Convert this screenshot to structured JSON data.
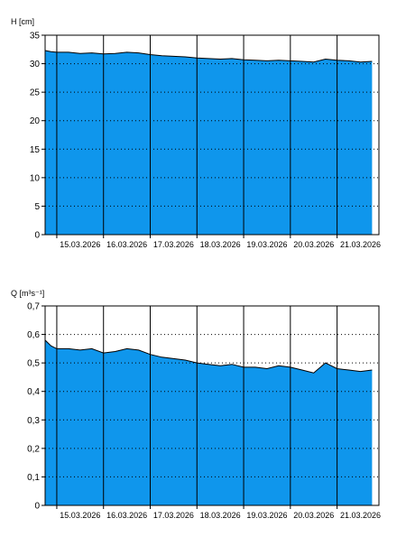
{
  "colors": {
    "area_fill": "#0f96ec",
    "line": "#000000",
    "background": "#ffffff",
    "grid": "#000000"
  },
  "chart_data": [
    {
      "type": "area",
      "ylabel": "H [cm]",
      "xlabel": "",
      "ylim": [
        0,
        35
      ],
      "yticks": [
        "0",
        "5",
        "10",
        "15",
        "20",
        "25",
        "30",
        "35"
      ],
      "ytick_values": [
        0,
        5,
        10,
        15,
        20,
        25,
        30,
        35
      ],
      "xlim": [
        "2026-03-14 18:00",
        "2026-03-21 21:30"
      ],
      "xtick_labels": [
        "15.03.2026",
        "16.03.2026",
        "17.03.2026",
        "18.03.2026",
        "19.03.2026",
        "20.03.2026",
        "21.03.2026"
      ],
      "xtick_values": [
        "2026-03-15 00:00",
        "2026-03-16 00:00",
        "2026-03-17 00:00",
        "2026-03-18 00:00",
        "2026-03-19 00:00",
        "2026-03-20 00:00",
        "2026-03-21 00:00"
      ],
      "grid": "vertical solid at day boundaries, horizontal dotted at y ticks",
      "series": [
        {
          "x": [
            "2026-03-14 18:00",
            "2026-03-14 21:00",
            "2026-03-15 00:00",
            "2026-03-15 06:00",
            "2026-03-15 12:00",
            "2026-03-15 18:00",
            "2026-03-16 00:00",
            "2026-03-16 06:00",
            "2026-03-16 12:00",
            "2026-03-16 18:00",
            "2026-03-17 00:00",
            "2026-03-17 06:00",
            "2026-03-17 12:00",
            "2026-03-17 18:00",
            "2026-03-18 00:00",
            "2026-03-18 06:00",
            "2026-03-18 12:00",
            "2026-03-18 18:00",
            "2026-03-19 00:00",
            "2026-03-19 06:00",
            "2026-03-19 12:00",
            "2026-03-19 18:00",
            "2026-03-20 00:00",
            "2026-03-20 06:00",
            "2026-03-20 12:00",
            "2026-03-20 18:00",
            "2026-03-21 00:00",
            "2026-03-21 06:00",
            "2026-03-21 12:00",
            "2026-03-21 18:00"
          ],
          "y": [
            32.3,
            32.1,
            32.0,
            32.0,
            31.8,
            31.9,
            31.7,
            31.8,
            32.0,
            31.9,
            31.6,
            31.4,
            31.3,
            31.2,
            31.0,
            30.9,
            30.8,
            30.9,
            30.7,
            30.6,
            30.5,
            30.6,
            30.5,
            30.4,
            30.3,
            30.8,
            30.6,
            30.5,
            30.3,
            30.4
          ]
        }
      ]
    },
    {
      "type": "area",
      "ylabel": "Q [m³s⁻¹]",
      "xlabel": "",
      "ylim": [
        0,
        0.7
      ],
      "yticks": [
        "0",
        "0,1",
        "0,2",
        "0,3",
        "0,4",
        "0,5",
        "0,6",
        "0,7"
      ],
      "ytick_values": [
        0,
        0.1,
        0.2,
        0.3,
        0.4,
        0.5,
        0.6,
        0.7
      ],
      "xlim": [
        "2026-03-14 18:00",
        "2026-03-21 21:30"
      ],
      "xtick_labels": [
        "15.03.2026",
        "16.03.2026",
        "17.03.2026",
        "18.03.2026",
        "19.03.2026",
        "20.03.2026",
        "21.03.2026"
      ],
      "xtick_values": [
        "2026-03-15 00:00",
        "2026-03-16 00:00",
        "2026-03-17 00:00",
        "2026-03-18 00:00",
        "2026-03-19 00:00",
        "2026-03-20 00:00",
        "2026-03-21 00:00"
      ],
      "grid": "vertical solid at day boundaries, horizontal dotted at y ticks",
      "series": [
        {
          "x": [
            "2026-03-14 18:00",
            "2026-03-14 21:00",
            "2026-03-15 00:00",
            "2026-03-15 06:00",
            "2026-03-15 12:00",
            "2026-03-15 18:00",
            "2026-03-16 00:00",
            "2026-03-16 06:00",
            "2026-03-16 12:00",
            "2026-03-16 18:00",
            "2026-03-17 00:00",
            "2026-03-17 06:00",
            "2026-03-17 12:00",
            "2026-03-17 18:00",
            "2026-03-18 00:00",
            "2026-03-18 06:00",
            "2026-03-18 12:00",
            "2026-03-18 18:00",
            "2026-03-19 00:00",
            "2026-03-19 06:00",
            "2026-03-19 12:00",
            "2026-03-19 18:00",
            "2026-03-20 00:00",
            "2026-03-20 06:00",
            "2026-03-20 12:00",
            "2026-03-20 18:00",
            "2026-03-21 00:00",
            "2026-03-21 06:00",
            "2026-03-21 12:00",
            "2026-03-21 18:00"
          ],
          "y": [
            0.58,
            0.56,
            0.55,
            0.55,
            0.545,
            0.55,
            0.535,
            0.54,
            0.55,
            0.545,
            0.53,
            0.52,
            0.515,
            0.51,
            0.5,
            0.495,
            0.49,
            0.495,
            0.485,
            0.485,
            0.48,
            0.49,
            0.485,
            0.475,
            0.465,
            0.5,
            0.48,
            0.475,
            0.47,
            0.475
          ]
        }
      ]
    }
  ]
}
